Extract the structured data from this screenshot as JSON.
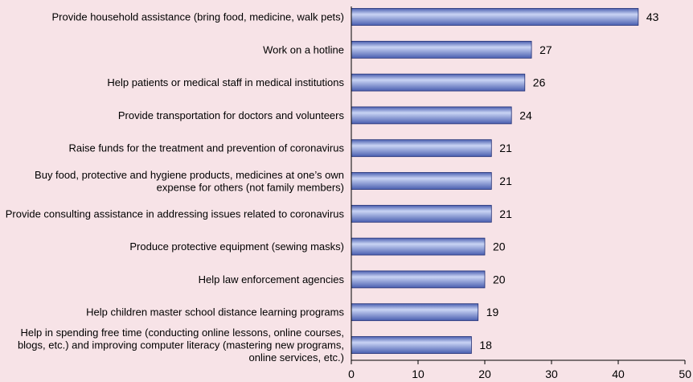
{
  "chart_data": {
    "type": "bar",
    "orientation": "horizontal",
    "title": "",
    "xlabel": "",
    "ylabel": "",
    "xlim": [
      0,
      50
    ],
    "xticks": [
      0,
      10,
      20,
      30,
      40,
      50
    ],
    "grid": false,
    "legend": "none",
    "bar_color": "#4a5fb0",
    "bar_highlight": "#c9d4f4",
    "categories": [
      [
        "Provide household assistance (bring food, medicine, walk pets)"
      ],
      [
        "Work on a hotline"
      ],
      [
        "Help patients or medical staff in medical institutions"
      ],
      [
        "Provide transportation for doctors and volunteers"
      ],
      [
        "Raise funds for the treatment and prevention of coronavirus"
      ],
      [
        "Buy food, protective and hygiene products, medicines at one’s own",
        "expense for others (not family members)"
      ],
      [
        "Provide consulting assistance in addressing issues related to coronavirus"
      ],
      [
        "Produce protective equipment (sewing masks)"
      ],
      [
        "Help law enforcement agencies"
      ],
      [
        "Help children master school distance learning programs"
      ],
      [
        "Help in spending free time (conducting online lessons, online courses,",
        "blogs, etc.) and improving computer literacy (mastering new programs,",
        "online services, etc.)"
      ]
    ],
    "values": [
      43,
      27,
      26,
      24,
      21,
      21,
      21,
      20,
      20,
      19,
      18
    ]
  }
}
